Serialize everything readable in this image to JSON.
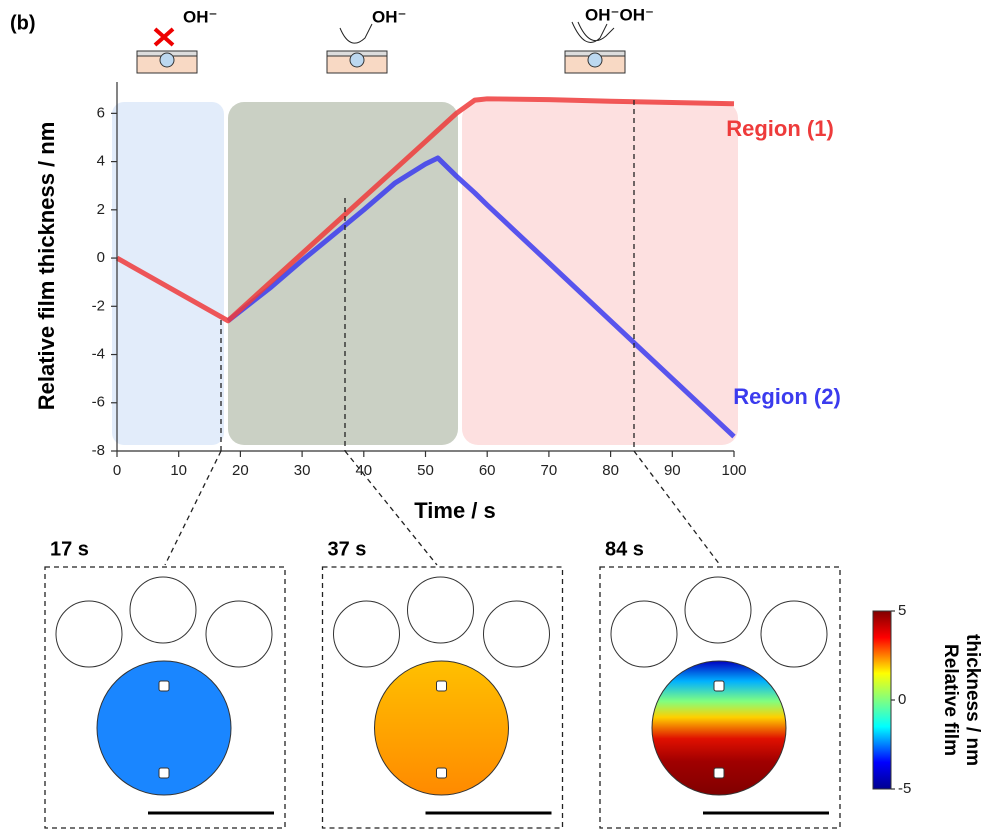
{
  "panel_label": "(b)",
  "icons": [
    "OH⁻",
    "OH⁻",
    "OH⁻OH⁻"
  ],
  "chart_data": {
    "type": "line",
    "xlabel": "Time / s",
    "ylabel": "Relative film thickness / nm",
    "x": [
      0,
      18,
      25,
      30,
      35,
      40,
      45,
      50,
      52,
      55,
      58,
      60,
      70,
      80,
      90,
      100
    ],
    "series": [
      {
        "name": "Region (1)",
        "color": "#ee3b3b",
        "values": [
          0,
          -2.6,
          -0.97,
          0.19,
          1.35,
          2.51,
          3.67,
          4.83,
          5.3,
          6.0,
          6.55,
          6.6,
          6.57,
          6.5,
          6.45,
          6.4
        ]
      },
      {
        "name": "Region (2)",
        "color": "#3b3bee",
        "values": [
          null,
          -2.6,
          -1.2,
          -0.1,
          0.95,
          2.0,
          3.1,
          3.9,
          4.15,
          3.4,
          2.7,
          2.2,
          -0.2,
          -2.6,
          -5.0,
          -7.4
        ]
      }
    ],
    "xlim": [
      0,
      100
    ],
    "xticks": [
      0,
      10,
      20,
      30,
      40,
      50,
      60,
      70,
      80,
      90,
      100
    ],
    "ylim": [
      -8,
      7.3
    ],
    "yticks": [
      -8,
      -6,
      -4,
      -2,
      0,
      2,
      4,
      6
    ]
  },
  "insets": [
    {
      "label": "17 s"
    },
    {
      "label": "37 s"
    },
    {
      "label": "84 s"
    }
  ],
  "colorbar": {
    "label": [
      "Relative film",
      "thickness / nm"
    ],
    "lim": [
      -5,
      5
    ],
    "ticks": [
      5,
      0,
      -5
    ]
  }
}
